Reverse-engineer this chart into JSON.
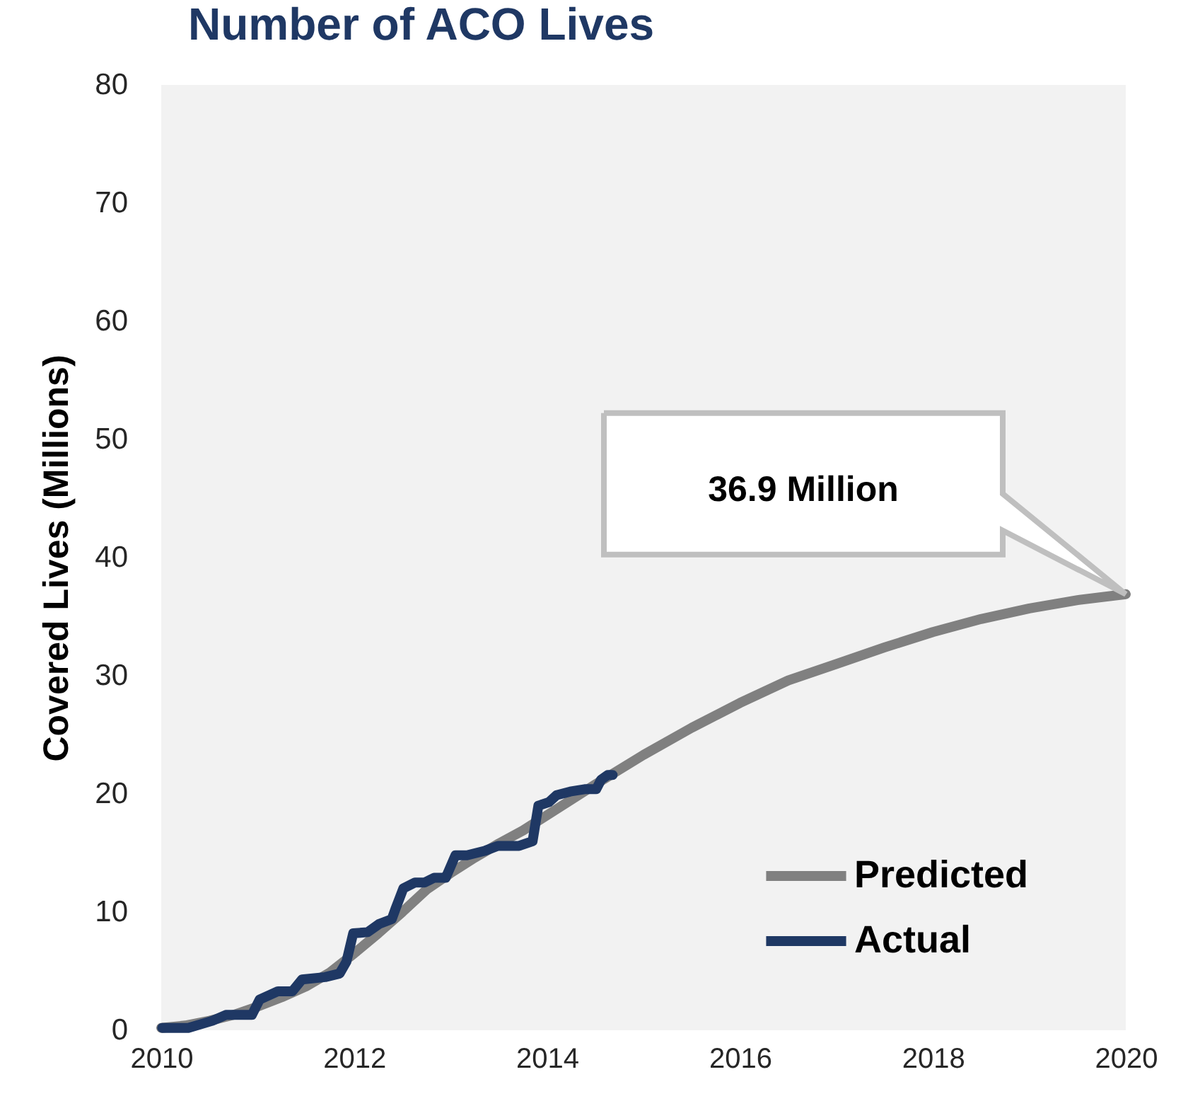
{
  "chart_data": {
    "type": "line",
    "title": "Number of ACO Lives",
    "ylabel": "Covered Lives (Millions)",
    "xlim": [
      2010,
      2020
    ],
    "xticks": [
      2010,
      2012,
      2014,
      2016,
      2018,
      2020
    ],
    "ylim": [
      0,
      80
    ],
    "yticks": [
      0,
      10,
      20,
      30,
      40,
      50,
      60,
      70,
      80
    ],
    "legend": "bottom right",
    "series": [
      {
        "name": "Predicted",
        "color": "#808080",
        "x": [
          2010,
          2010.25,
          2010.5,
          2010.75,
          2011,
          2011.25,
          2011.5,
          2011.75,
          2012,
          2012.25,
          2012.5,
          2012.75,
          2013,
          2013.25,
          2013.5,
          2013.75,
          2014,
          2014.5,
          2015,
          2015.5,
          2016,
          2016.5,
          2017,
          2017.5,
          2018,
          2018.5,
          2019,
          2019.5,
          2020
        ],
        "values": [
          0.2,
          0.4,
          0.8,
          1.3,
          2.0,
          2.8,
          3.7,
          4.9,
          6.5,
          8.2,
          10.0,
          11.9,
          13.3,
          14.6,
          15.8,
          16.9,
          18.2,
          20.8,
          23.3,
          25.6,
          27.7,
          29.6,
          31.0,
          32.4,
          33.7,
          34.8,
          35.7,
          36.4,
          36.9
        ]
      },
      {
        "name": "Actual",
        "color": "#1f3864",
        "x": [
          2010.01,
          2010.28,
          2010.53,
          2010.67,
          2010.94,
          2011.02,
          2011.21,
          2011.36,
          2011.46,
          2011.7,
          2011.85,
          2011.92,
          2011.99,
          2012.14,
          2012.26,
          2012.39,
          2012.43,
          2012.51,
          2012.63,
          2012.73,
          2012.83,
          2012.95,
          2013.05,
          2013.17,
          2013.36,
          2013.49,
          2013.71,
          2013.85,
          2013.91,
          2014.02,
          2014.1,
          2014.24,
          2014.39,
          2014.51,
          2014.56,
          2014.63,
          2014.68
        ],
        "values": [
          0.2,
          0.2,
          0.8,
          1.3,
          1.3,
          2.6,
          3.3,
          3.3,
          4.3,
          4.5,
          4.8,
          5.8,
          8.2,
          8.3,
          9.0,
          9.4,
          10.3,
          12.0,
          12.5,
          12.5,
          12.9,
          12.9,
          14.8,
          14.8,
          15.2,
          15.6,
          15.6,
          16.0,
          19.0,
          19.3,
          19.9,
          20.2,
          20.4,
          20.4,
          21.2,
          21.6,
          21.6
        ]
      }
    ],
    "annotations": [
      "36.9 Million"
    ]
  }
}
